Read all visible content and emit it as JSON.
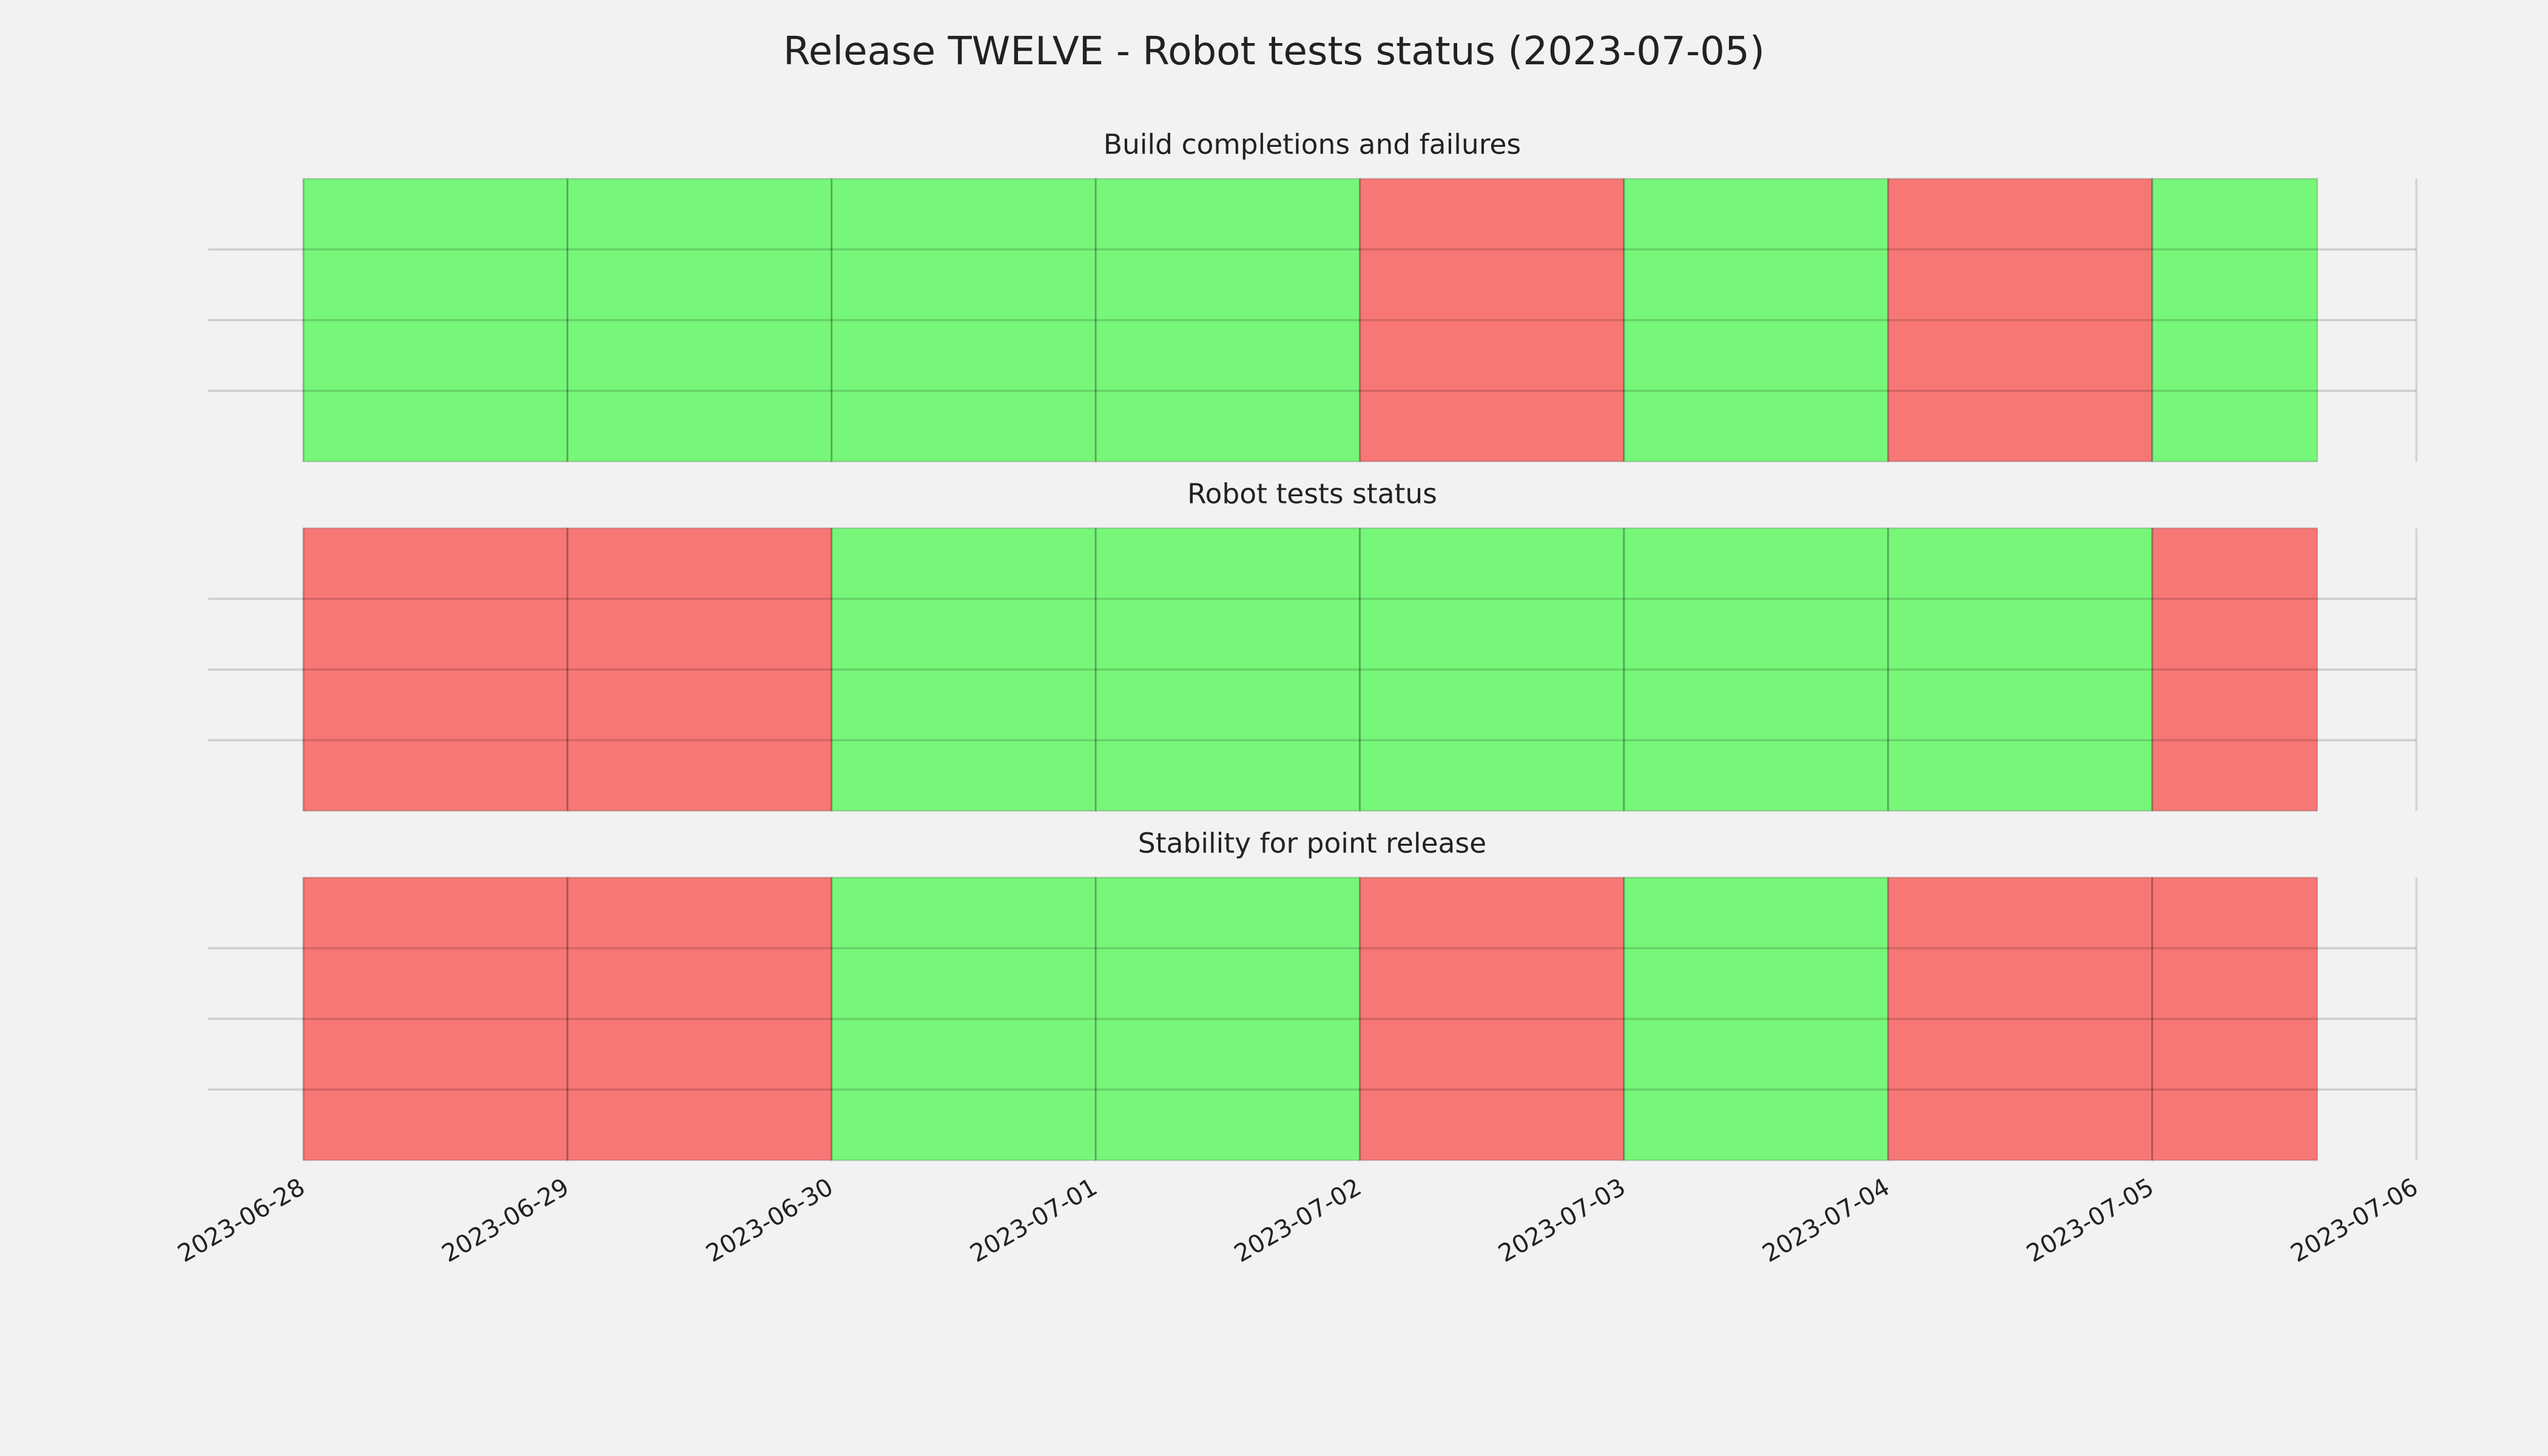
{
  "title": "Release TWELVE - Robot tests status (2023-07-05)",
  "chart_data": [
    {
      "type": "span",
      "title": "Build completions and failures",
      "x": [
        "2023-06-28",
        "2023-06-29",
        "2023-06-30",
        "2023-07-01",
        "2023-07-02",
        "2023-07-03",
        "2023-07-04",
        "2023-07-05"
      ],
      "x_end": "2023-07-05T15:00",
      "colors": [
        "#77f77a",
        "#77f77a",
        "#77f77a",
        "#77f77a",
        "#f77775",
        "#77f77a",
        "#f77775",
        "#77f77a"
      ],
      "xlim": [
        "2023-06-27T15:20",
        "2023-07-06"
      ],
      "xticks": [
        "2023-06-28",
        "2023-06-29",
        "2023-06-30",
        "2023-07-01",
        "2023-07-02",
        "2023-07-03",
        "2023-07-04",
        "2023-07-05",
        "2023-07-06"
      ],
      "ylim": [
        0,
        1
      ],
      "yticks": [
        0.25,
        0.5,
        0.75
      ],
      "grid": true,
      "xtick_labels": false
    },
    {
      "type": "span",
      "title": "Robot tests status",
      "x": [
        "2023-06-28",
        "2023-06-29",
        "2023-06-30",
        "2023-07-01",
        "2023-07-02",
        "2023-07-03",
        "2023-07-04",
        "2023-07-05"
      ],
      "x_end": "2023-07-05T15:00",
      "colors": [
        "#f77775",
        "#f77775",
        "#77f77a",
        "#77f77a",
        "#77f77a",
        "#77f77a",
        "#77f77a",
        "#f77775"
      ],
      "xlim": [
        "2023-06-27T15:20",
        "2023-07-06"
      ],
      "xticks": [
        "2023-06-28",
        "2023-06-29",
        "2023-06-30",
        "2023-07-01",
        "2023-07-02",
        "2023-07-03",
        "2023-07-04",
        "2023-07-05",
        "2023-07-06"
      ],
      "ylim": [
        0,
        1
      ],
      "yticks": [
        0.25,
        0.5,
        0.75
      ],
      "grid": true,
      "xtick_labels": false
    },
    {
      "type": "span",
      "title": "Stability for point release",
      "x": [
        "2023-06-28",
        "2023-06-29",
        "2023-06-30",
        "2023-07-01",
        "2023-07-02",
        "2023-07-03",
        "2023-07-04",
        "2023-07-05"
      ],
      "x_end": "2023-07-05T15:00",
      "colors": [
        "#f77775",
        "#f77775",
        "#77f77a",
        "#77f77a",
        "#f77775",
        "#77f77a",
        "#f77775",
        "#f77775"
      ],
      "xlim": [
        "2023-06-27T15:20",
        "2023-07-06"
      ],
      "xticks": [
        "2023-06-28",
        "2023-06-29",
        "2023-06-30",
        "2023-07-01",
        "2023-07-02",
        "2023-07-03",
        "2023-07-04",
        "2023-07-05",
        "2023-07-06"
      ],
      "ylim": [
        0,
        1
      ],
      "yticks": [
        0.25,
        0.5,
        0.75
      ],
      "grid": true,
      "xtick_labels": true
    }
  ]
}
